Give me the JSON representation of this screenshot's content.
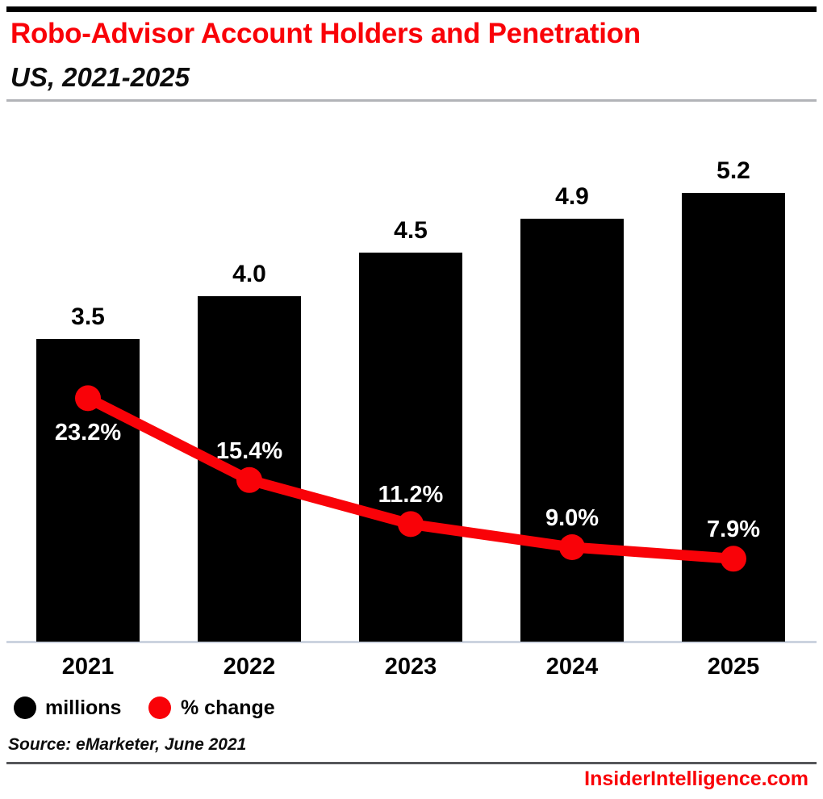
{
  "header": {
    "title": "Robo-Advisor Account Holders and Penetration",
    "subtitle": "US, 2021-2025"
  },
  "chart_data": {
    "type": "combo-bar-line",
    "categories": [
      "2021",
      "2022",
      "2023",
      "2024",
      "2025"
    ],
    "series": [
      {
        "name": "millions",
        "type": "bar",
        "color": "#000000",
        "values": [
          3.5,
          4.0,
          4.5,
          4.9,
          5.2
        ],
        "labels": [
          "3.5",
          "4.0",
          "4.5",
          "4.9",
          "5.2"
        ]
      },
      {
        "name": "% change",
        "type": "line",
        "color": "#f90208",
        "values": [
          23.2,
          15.4,
          11.2,
          9.0,
          7.9
        ],
        "labels": [
          "23.2%",
          "15.4%",
          "11.2%",
          "9.0%",
          "7.9%"
        ]
      }
    ],
    "bar_axis": {
      "min": 0,
      "unit": "millions",
      "axis_labels_visible": false
    },
    "line_axis": {
      "min": 0,
      "unit": "% change",
      "axis_labels_visible": false
    },
    "grid": false,
    "legend_position": "bottom-left",
    "value_labels_visible": true
  },
  "legend": {
    "items": [
      {
        "label": "millions",
        "color": "#000000"
      },
      {
        "label": "% change",
        "color": "#f90208"
      }
    ]
  },
  "footer": {
    "source": "Source: eMarketer, June 2021",
    "branding": "InsiderIntelligence.com"
  },
  "colors": {
    "accent_red": "#f90208",
    "bar_black": "#000000",
    "axis_line": "#ccd3df",
    "divider_top": "#b2b4b8",
    "divider_bottom": "#55565a"
  }
}
